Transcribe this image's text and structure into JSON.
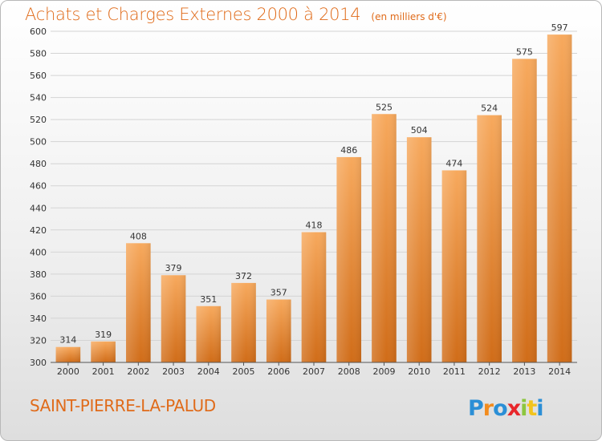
{
  "chart_data": {
    "type": "bar",
    "title": "Achats et Charges Externes 2000 à 2014",
    "subtitle": "(en milliers d'€)",
    "categories": [
      "2000",
      "2001",
      "2002",
      "2003",
      "2004",
      "2005",
      "2006",
      "2007",
      "2008",
      "2009",
      "2010",
      "2011",
      "2012",
      "2013",
      "2014"
    ],
    "values": [
      314,
      319,
      408,
      379,
      351,
      372,
      357,
      418,
      486,
      525,
      504,
      474,
      524,
      575,
      597
    ],
    "ylim": [
      300,
      600
    ],
    "yticks": [
      300,
      320,
      340,
      360,
      380,
      400,
      420,
      440,
      460,
      480,
      500,
      520,
      540,
      560,
      580,
      600
    ],
    "xlabel": "",
    "ylabel": "",
    "grid": true,
    "legend": "none",
    "colors": {
      "bar_light": "#f6a75a",
      "bar_dark": "#cf6a17",
      "title": "#e06b1a",
      "grid": "#d4d4d4"
    }
  },
  "footer": {
    "commune": "SAINT-PIERRE-LA-PALUD",
    "logo_text": "Proxiti"
  }
}
